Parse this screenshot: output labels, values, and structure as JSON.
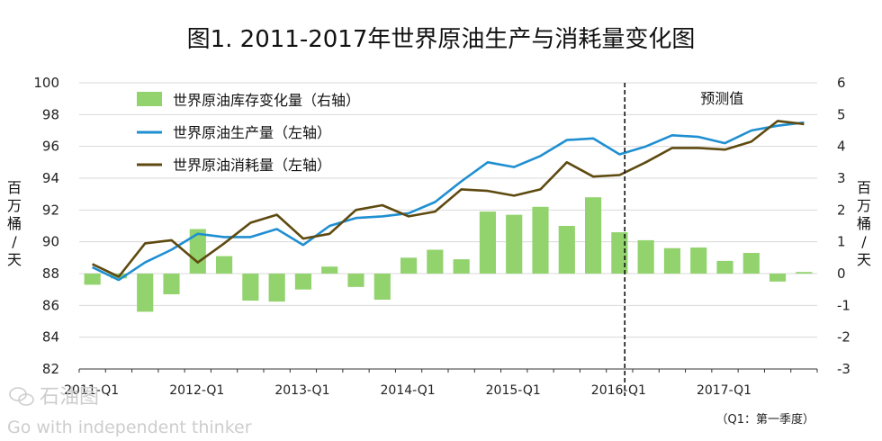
{
  "chart_data": {
    "type": "bar+line",
    "title": "图1. 2011-2017年世界原油生产与消耗量变化图",
    "left_axis_label": [
      "百",
      "万",
      "桶",
      "/",
      "天"
    ],
    "right_axis_label": [
      "百",
      "万",
      "桶",
      "/",
      "天"
    ],
    "ylim_left": [
      82,
      100
    ],
    "yticks_left": [
      82,
      84,
      86,
      88,
      90,
      92,
      94,
      96,
      98,
      100
    ],
    "ylim_right": [
      -3,
      6
    ],
    "yticks_right": [
      -3,
      -2,
      -1,
      0,
      1,
      2,
      3,
      4,
      5,
      6
    ],
    "x_tick_labels": [
      {
        "label": "2011-Q1",
        "index": 0
      },
      {
        "label": "2012-Q1",
        "index": 4
      },
      {
        "label": "2013-Q1",
        "index": 8
      },
      {
        "label": "2014-Q1",
        "index": 12
      },
      {
        "label": "2015-Q1",
        "index": 16
      },
      {
        "label": "2016-Q1",
        "index": 20
      },
      {
        "label": "2017-Q1",
        "index": 24
      }
    ],
    "period_count": 28,
    "forecast_start_index": 21,
    "forecast_label": "预测值",
    "note": "（Q1：第一季度）",
    "series": [
      {
        "name": "世界原油库存变化量（右轴）",
        "kind": "bar",
        "axis": "right",
        "color": "#92d36e",
        "values": [
          -0.35,
          -0.15,
          -1.2,
          -0.65,
          1.4,
          0.55,
          -0.85,
          -0.88,
          -0.5,
          0.22,
          -0.42,
          -0.82,
          0.5,
          0.75,
          0.45,
          1.95,
          1.85,
          2.1,
          1.5,
          2.4,
          1.3,
          1.05,
          0.8,
          0.82,
          0.4,
          0.65,
          -0.25,
          0.05
        ]
      },
      {
        "name": "世界原油生产量（左轴）",
        "kind": "line",
        "axis": "left",
        "color": "#1f8fd1",
        "values": [
          88.4,
          87.6,
          88.7,
          89.5,
          90.5,
          90.3,
          90.3,
          90.8,
          89.8,
          91.0,
          91.5,
          91.6,
          91.8,
          92.5,
          93.8,
          95.0,
          94.7,
          95.4,
          96.4,
          96.5,
          95.5,
          96.0,
          96.7,
          96.6,
          96.2,
          97.0,
          97.3,
          97.5
        ]
      },
      {
        "name": "世界原油消耗量（左轴）",
        "kind": "line",
        "axis": "left",
        "color": "#5e4a10",
        "values": [
          88.6,
          87.8,
          89.9,
          90.1,
          88.7,
          89.9,
          91.2,
          91.7,
          90.2,
          90.5,
          92.0,
          92.3,
          91.6,
          91.9,
          93.3,
          93.2,
          92.9,
          93.3,
          95.0,
          94.1,
          94.2,
          95.0,
          95.9,
          95.9,
          95.8,
          96.3,
          97.6,
          97.4
        ]
      }
    ]
  },
  "watermark": {
    "brand": "石油图",
    "slogan": "Go with independent thinker"
  }
}
